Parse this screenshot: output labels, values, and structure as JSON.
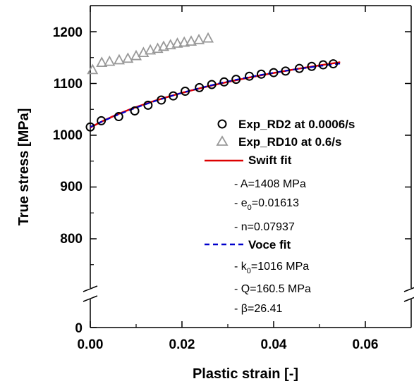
{
  "chart_data": {
    "type": "scatter",
    "xlabel": "Plastic strain [-]",
    "ylabel": "True stress [MPa]",
    "xlim": [
      0,
      0.07
    ],
    "ylim_upper_segment": [
      750,
      1240
    ],
    "y_axis_break": true,
    "x_ticks": [
      "0.00",
      "0.02",
      "0.04",
      "0.06"
    ],
    "y_ticks": [
      "0",
      "800",
      "900",
      "1000",
      "1100",
      "1200"
    ],
    "legend_position": "center-right",
    "grid": false,
    "series": [
      {
        "name": "Exp_RD2 at 0.0006/s",
        "kind": "markers",
        "marker": "circle",
        "color": "#000000",
        "x": [
          0.0,
          0.0024,
          0.0062,
          0.0097,
          0.0126,
          0.0155,
          0.0181,
          0.0207,
          0.0238,
          0.0265,
          0.0292,
          0.0318,
          0.0347,
          0.0373,
          0.04,
          0.0426,
          0.0456,
          0.0483,
          0.0508,
          0.053
        ],
        "y": [
          1016,
          1028,
          1036,
          1047,
          1058,
          1068,
          1076,
          1085,
          1092,
          1098,
          1103,
          1108,
          1114,
          1118,
          1121,
          1124,
          1129,
          1133,
          1136,
          1138
        ]
      },
      {
        "name": "Exp_RD10 at 0.6/s",
        "kind": "markers",
        "marker": "triangle",
        "color": "#999999",
        "x": [
          0.0005,
          0.0025,
          0.0042,
          0.0063,
          0.0082,
          0.01,
          0.0116,
          0.0131,
          0.0147,
          0.016,
          0.0175,
          0.019,
          0.0205,
          0.022,
          0.0237,
          0.0257
        ],
        "y": [
          1126,
          1140,
          1142,
          1145,
          1148,
          1153,
          1159,
          1164,
          1167,
          1171,
          1174,
          1177,
          1179,
          1181,
          1184,
          1187
        ]
      },
      {
        "name": "Swift fit",
        "kind": "line",
        "style": "solid",
        "color": "#dd0000",
        "params": {
          "A": 1408,
          "e0": 0.01613,
          "n": 0.07937
        }
      },
      {
        "name": "Voce fit",
        "kind": "line",
        "style": "dashed",
        "color": "#0000cc",
        "params": {
          "k0": 1016,
          "Q": 160.5,
          "beta": 26.41
        }
      }
    ],
    "legend": {
      "exp_rd2": "Exp_RD2 at 0.0006/s",
      "exp_rd10": "Exp_RD10 at 0.6/s",
      "swift": "Swift fit",
      "swift_params": [
        "- A=1408 MPa",
        "- e",
        "0",
        "=0.01613",
        "- n=0.07937"
      ],
      "voce": "Voce fit",
      "voce_params": [
        "- k",
        "0",
        "=1016 MPa",
        "- Q=160.5 MPa",
        "- β=26.41"
      ]
    }
  }
}
